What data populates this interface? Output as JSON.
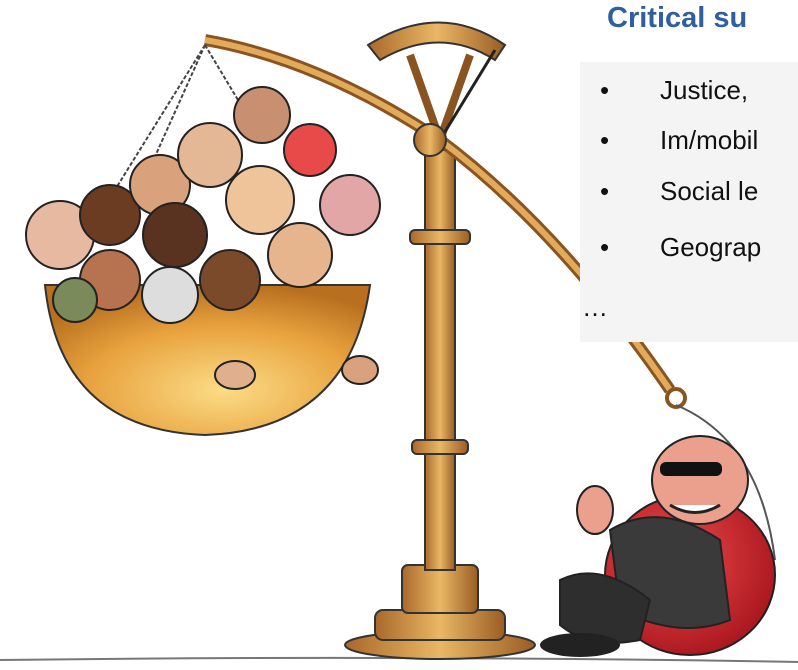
{
  "header": {
    "title": "Critical su"
  },
  "bullets": [
    "Justice,",
    "Im/mobil",
    "Social le",
    "Geograp"
  ],
  "ellipsis": "…"
}
